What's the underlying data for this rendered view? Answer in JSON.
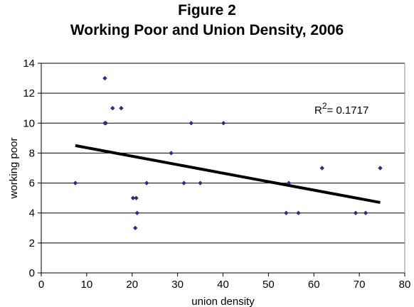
{
  "chart_data": {
    "type": "scatter",
    "title": "Figure 2",
    "subtitle": "Working Poor and Union Density, 2006",
    "xlabel": "union density",
    "ylabel": "working poor",
    "xlim": [
      0,
      80
    ],
    "ylim": [
      0,
      14
    ],
    "xticks": [
      "0",
      "10",
      "20",
      "30",
      "40",
      "50",
      "60",
      "70",
      "80"
    ],
    "yticks": [
      "0",
      "2",
      "4",
      "6",
      "8",
      "10",
      "12",
      "14"
    ],
    "grid": "horizontal",
    "points": [
      {
        "x": 7.5,
        "y": 6
      },
      {
        "x": 14,
        "y": 13
      },
      {
        "x": 14,
        "y": 10
      },
      {
        "x": 14.2,
        "y": 10
      },
      {
        "x": 15.7,
        "y": 11
      },
      {
        "x": 17.6,
        "y": 11
      },
      {
        "x": 20.2,
        "y": 5
      },
      {
        "x": 20.7,
        "y": 3
      },
      {
        "x": 20.9,
        "y": 5
      },
      {
        "x": 21.1,
        "y": 4
      },
      {
        "x": 23.2,
        "y": 6
      },
      {
        "x": 28.6,
        "y": 8
      },
      {
        "x": 31.4,
        "y": 6
      },
      {
        "x": 33,
        "y": 10
      },
      {
        "x": 35,
        "y": 6
      },
      {
        "x": 40.1,
        "y": 10
      },
      {
        "x": 53.9,
        "y": 4
      },
      {
        "x": 54.5,
        "y": 6
      },
      {
        "x": 56.6,
        "y": 4
      },
      {
        "x": 61.8,
        "y": 7
      },
      {
        "x": 69.2,
        "y": 4
      },
      {
        "x": 71.4,
        "y": 4
      },
      {
        "x": 74.6,
        "y": 7
      }
    ],
    "trendline": {
      "x": [
        7.5,
        74.6
      ],
      "y": [
        8.5,
        4.7
      ]
    },
    "annotation": {
      "prefix": "R",
      "superscript": "2",
      "text": "= 0.1717"
    },
    "colors": {
      "points": "#2e2e7a",
      "trendline": "#000000",
      "grid": "#000000"
    }
  }
}
